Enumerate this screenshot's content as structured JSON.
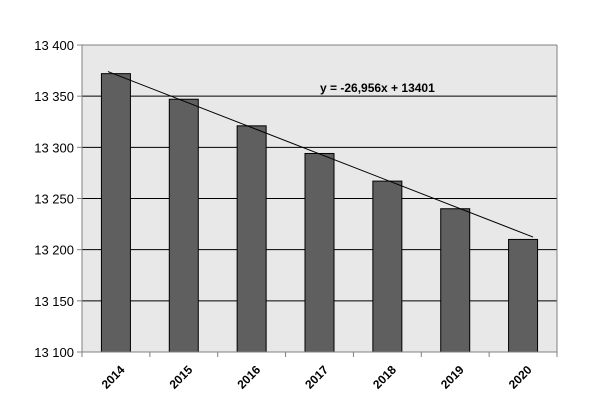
{
  "chart_data": {
    "type": "bar",
    "categories": [
      "2014",
      "2015",
      "2016",
      "2017",
      "2018",
      "2019",
      "2020"
    ],
    "values": [
      13372,
      13347,
      13321,
      13294,
      13267,
      13240,
      13210
    ],
    "ylim": [
      13100,
      13400
    ],
    "yticks": [
      13100,
      13150,
      13200,
      13250,
      13300,
      13350,
      13400
    ],
    "ytick_labels": [
      "13 100",
      "13 150",
      "13 200",
      "13 250",
      "13 300",
      "13 350",
      "13 400"
    ],
    "grid": true,
    "bar_color": "#5f5f5f",
    "plot_background": "#e8e8e8",
    "trendline": {
      "type": "linear",
      "slope": -26.956,
      "intercept": 13401,
      "equation_label": "y = -26,956x  + 13401"
    }
  }
}
